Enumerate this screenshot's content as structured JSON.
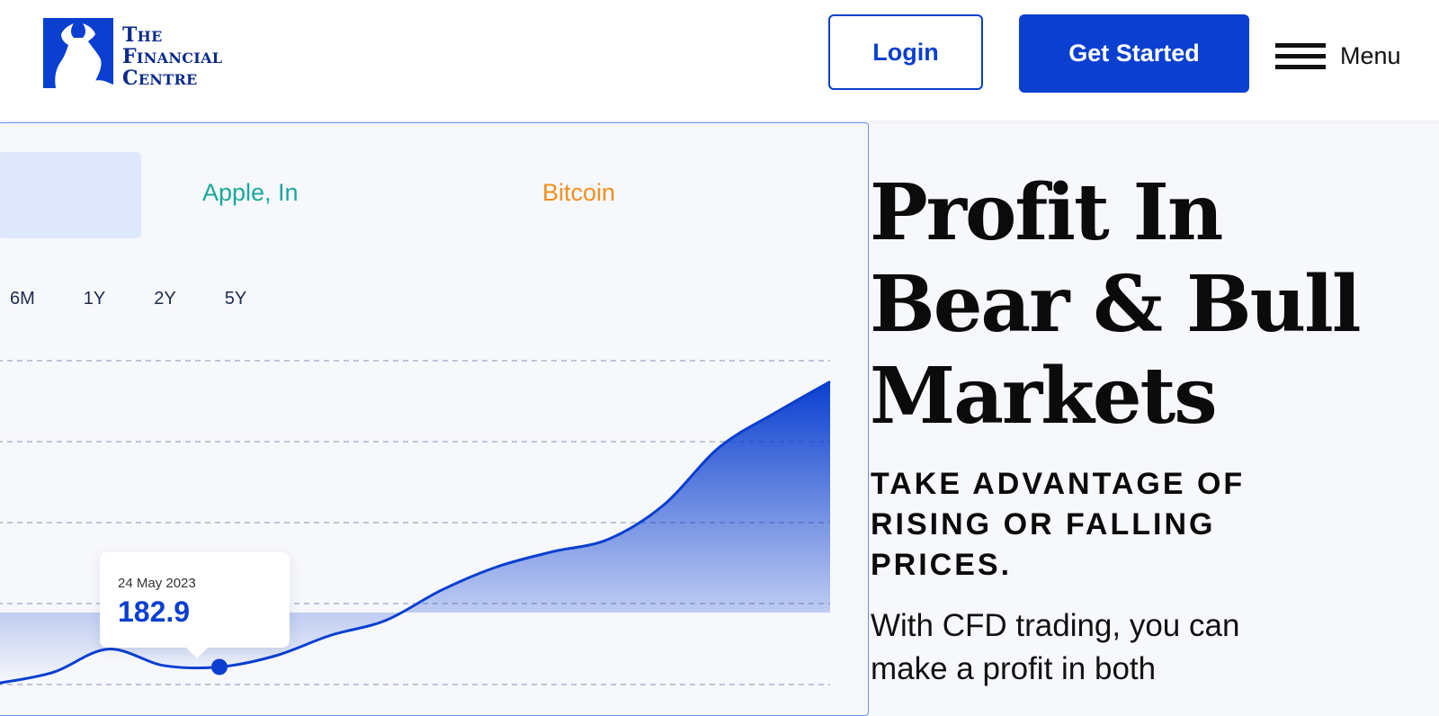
{
  "header": {
    "logo": {
      "line1_first": "T",
      "line1_rest": "HE",
      "line2_first": "F",
      "line2_rest": "INANCIAL",
      "line3_first": "C",
      "line3_rest": "ENTRE"
    },
    "login_label": "Login",
    "get_started_label": "Get Started",
    "menu_label": "Menu",
    "brand_color": "#0a3fd0"
  },
  "chart_panel": {
    "assets": [
      {
        "label": "",
        "active": true
      },
      {
        "label": "Apple, In",
        "color": "#1aa89a"
      },
      {
        "label": "Bitcoin",
        "color": "#f0901e"
      }
    ],
    "ranges": [
      "6M",
      "1Y",
      "2Y",
      "5Y"
    ],
    "tooltip": {
      "date": "24 May 2023",
      "value": "182.9"
    }
  },
  "chart_data": {
    "type": "area",
    "title": "",
    "xlabel": "",
    "ylabel": "",
    "grid": true,
    "series": [
      {
        "color": "#0a3fd0",
        "values": [
          90,
          98,
          115,
          103,
          102,
          110,
          125,
          136,
          158,
          175,
          186,
          195,
          220,
          262,
          287,
          310
        ]
      }
    ],
    "marker": {
      "index": 4,
      "value": 102
    }
  },
  "hero": {
    "title_lines": [
      "Profit In",
      "Bear & Bull",
      "Markets"
    ],
    "subtitle_lines": [
      "TAKE ADVANTAGE OF",
      "RISING OR FALLING",
      "PRICES."
    ],
    "body_lines": [
      "With CFD trading, you can",
      "make a profit in both"
    ]
  }
}
